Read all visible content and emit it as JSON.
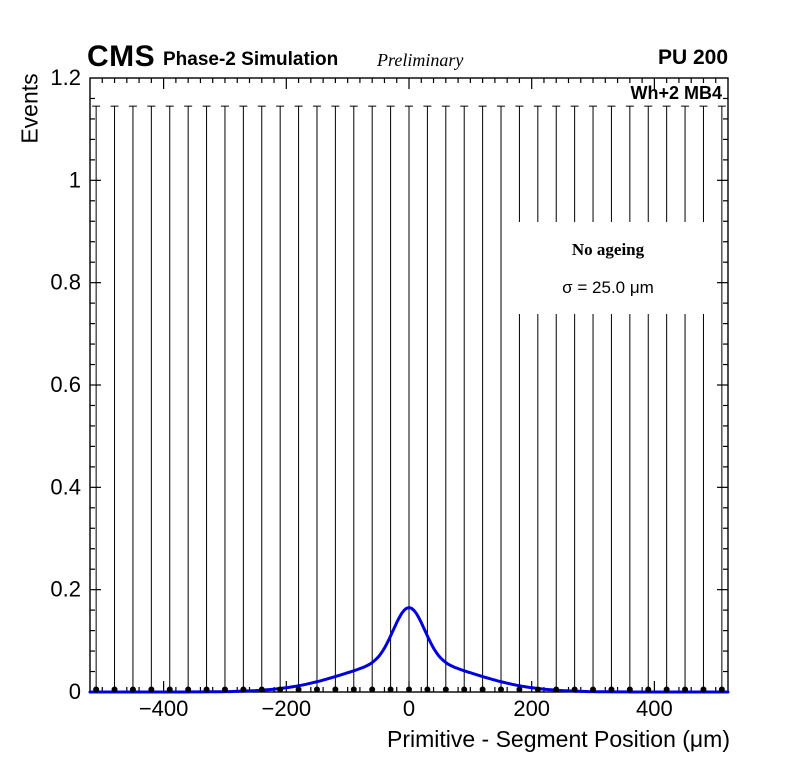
{
  "header": {
    "cms": "CMS",
    "subtitle": "Phase-2 Simulation",
    "preliminary": "Preliminary",
    "pu": "PU 200"
  },
  "plot": {
    "region_label": "Wh+2 MB4",
    "legend": {
      "line1": "No ageing",
      "line2": "σ = 25.0 μm"
    }
  },
  "chart_data": {
    "type": "scatter",
    "title": "CMS Phase-2 Simulation Preliminary — PU 200 — Wh+2 MB4",
    "xlabel": "Primitive - Segment Position (μm)",
    "ylabel": "Events",
    "xlim": [
      -520,
      520
    ],
    "ylim": [
      0,
      1.2
    ],
    "grid": false,
    "legend_position": "upper-right-inside",
    "x_major_ticks": [
      -400,
      -200,
      0,
      200,
      400
    ],
    "x_tick_labels": [
      "−400",
      "−200",
      "0",
      "200",
      "400"
    ],
    "x_minor_step": 20,
    "y_major_ticks": [
      0,
      0.2,
      0.4,
      0.6,
      0.8,
      1,
      1.2
    ],
    "y_tick_labels": [
      "0",
      "0.2",
      "0.4",
      "0.6",
      "0.8",
      "1",
      "1.2"
    ],
    "y_minor_step": 0.04,
    "series": [
      {
        "name": "data-points",
        "type": "points_with_errors",
        "marker": "filled-circle",
        "color": "#000000",
        "x": [
          -510,
          -480,
          -450,
          -420,
          -390,
          -360,
          -330,
          -300,
          -270,
          -240,
          -210,
          -180,
          -150,
          -120,
          -90,
          -60,
          -30,
          0,
          30,
          60,
          90,
          120,
          150,
          180,
          210,
          240,
          270,
          300,
          330,
          360,
          390,
          420,
          450,
          480,
          510
        ],
        "y": [
          0.005,
          0.005,
          0.005,
          0.005,
          0.005,
          0.005,
          0.005,
          0.005,
          0.005,
          0.005,
          0.005,
          0.005,
          0.005,
          0.005,
          0.005,
          0.005,
          0.005,
          0.005,
          0.005,
          0.005,
          0.005,
          0.005,
          0.005,
          0.005,
          0.005,
          0.005,
          0.005,
          0.005,
          0.005,
          0.005,
          0.005,
          0.005,
          0.005,
          0.005,
          0.005
        ],
        "y_err_top": 1.145
      },
      {
        "name": "fit-curve",
        "type": "curve",
        "color": "#0000dd",
        "model": "double_gaussian",
        "amp_core": 0.103,
        "sigma_core": 25,
        "amp_tail": 0.062,
        "sigma_tail": 100,
        "peak_y": 0.165,
        "fitted_sigma_um": 25.0
      }
    ]
  }
}
